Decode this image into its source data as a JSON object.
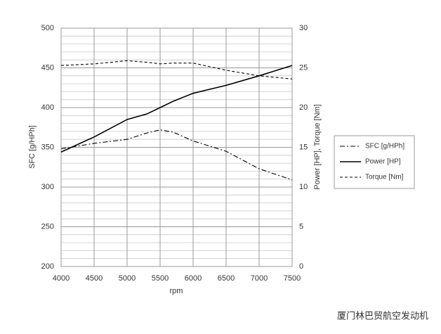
{
  "chart_data": {
    "type": "line",
    "x_label": "rpm",
    "y_label": "SFC [g/HPh]",
    "y2_label": "Power [HP], Torque [Nm]",
    "x": [
      4000,
      4500,
      5000,
      5300,
      5500,
      5700,
      6000,
      6500,
      7000,
      7500
    ],
    "series": [
      {
        "name": "SFC [g/HPh]",
        "color": "#000000",
        "dash": "dashdot",
        "axis": "y",
        "values": [
          348,
          355,
          360,
          368,
          372,
          369,
          358,
          345,
          323,
          309
        ]
      },
      {
        "name": "Power [HP]",
        "color": "#000000",
        "dash": "solid",
        "axis": "y2",
        "values": [
          14.4,
          16.3,
          18.5,
          19.2,
          20.0,
          20.8,
          21.8,
          22.8,
          24.0,
          25.3
        ]
      },
      {
        "name": "Torque [Nm]",
        "color": "#000000",
        "dash": "dashed",
        "axis": "y2",
        "values": [
          25.3,
          25.5,
          25.9,
          25.7,
          25.5,
          25.6,
          25.6,
          24.7,
          24.0,
          23.6
        ]
      }
    ],
    "xlim": [
      4000,
      7500
    ],
    "xticks": [
      4000,
      4500,
      5000,
      5500,
      6000,
      6500,
      7000,
      7500
    ],
    "ylim": [
      200,
      500
    ],
    "yticks": [
      200,
      250,
      300,
      350,
      400,
      450,
      500
    ],
    "y2lim": [
      0,
      30
    ],
    "y2ticks": [
      0,
      5,
      10,
      15,
      20,
      25,
      30
    ],
    "grid": true,
    "minor_grid": true,
    "legend": "right",
    "watermark": "厦门林巴贸航空发动机"
  }
}
